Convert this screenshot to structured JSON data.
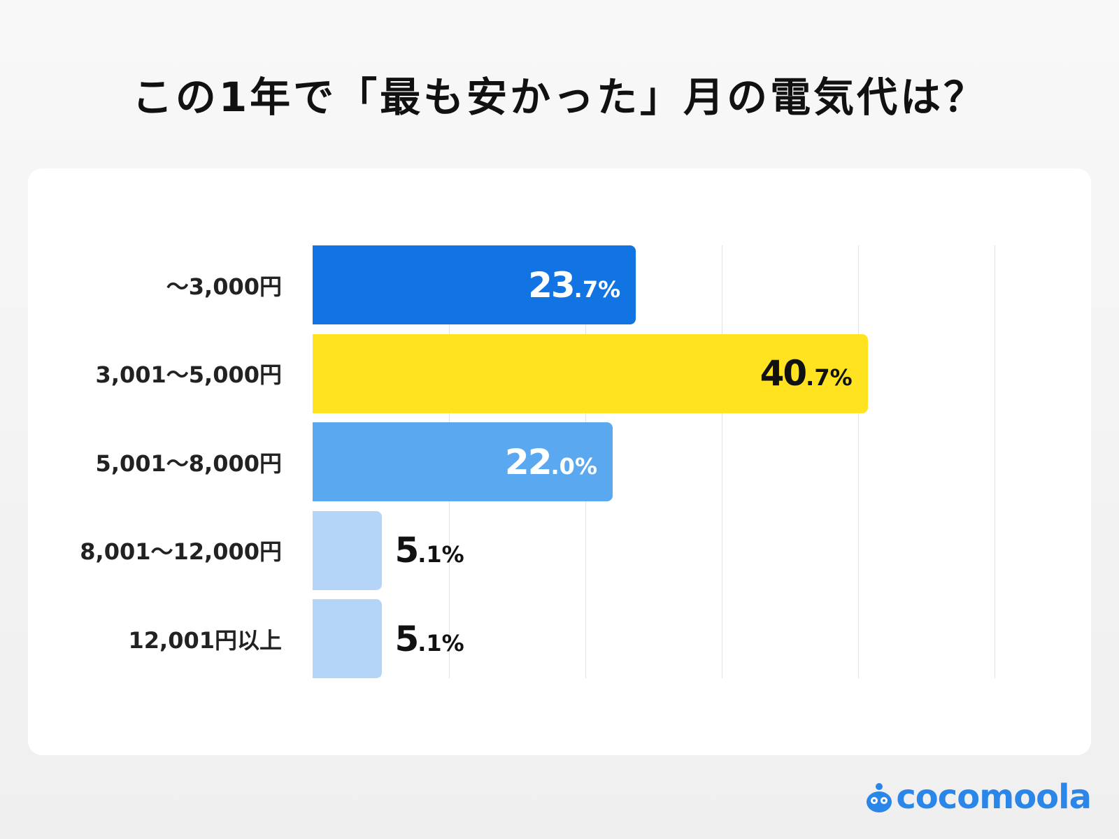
{
  "chart_data": {
    "type": "bar",
    "orientation": "horizontal",
    "title": "この1年で「最も安かった」月の電気代は？",
    "categories": [
      "〜3,000円",
      "3,001〜5,000円",
      "5,001〜8,000円",
      "8,001〜12,000円",
      "12,001円以上"
    ],
    "values": [
      23.7,
      40.7,
      22.0,
      5.1,
      5.1
    ],
    "labels": [
      [
        "23",
        ".7%"
      ],
      [
        "40",
        ".7%"
      ],
      [
        "22",
        ".0%"
      ],
      [
        "5",
        ".1%"
      ],
      [
        "5",
        ".1%"
      ]
    ],
    "colors": [
      "#1273e3",
      "#ffe320",
      "#5aa9f0",
      "#b5d5f8",
      "#b5d5f8"
    ],
    "label_colors": [
      "#ffffff",
      "#111111",
      "#ffffff",
      "#111111",
      "#111111"
    ],
    "xlim": [
      0,
      50
    ],
    "grid": true,
    "grid_step": 10
  },
  "brand": {
    "name": "cocomoola",
    "color": "#2a86e8"
  }
}
